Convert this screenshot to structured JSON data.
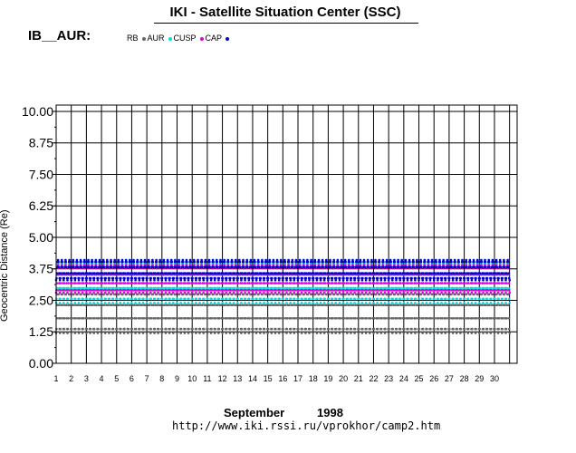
{
  "header": {
    "title": "IKI - Satellite Situation Center (SSC)",
    "station": "IB__AUR:"
  },
  "footer": {
    "month": "September",
    "year": "1998",
    "url": "http://www.iki.rssi.ru/vprokhor/camp2.htm"
  },
  "chart_data": {
    "type": "scatter",
    "title": "IKI - Satellite Situation Center (SSC)",
    "ylabel": "Geocentric Distance (Re)",
    "xlabel": "September 1998",
    "ylim": [
      0,
      10.25
    ],
    "xlim": [
      1,
      31.5
    ],
    "y_ticks": [
      "0.00",
      "1.25",
      "2.50",
      "3.75",
      "5.00",
      "6.25",
      "7.50",
      "8.75",
      "10.00"
    ],
    "y_tick_values": [
      0,
      1.25,
      2.5,
      3.75,
      5.0,
      6.25,
      7.5,
      8.75,
      10.0
    ],
    "x_ticks": [
      "1",
      "2",
      "3",
      "4",
      "5",
      "6",
      "7",
      "8",
      "9",
      "10",
      "11",
      "12",
      "13",
      "14",
      "15",
      "16",
      "17",
      "18",
      "19",
      "20",
      "21",
      "22",
      "23",
      "24",
      "25",
      "26",
      "27",
      "28",
      "29",
      "30"
    ],
    "x_tick_values": [
      1,
      2,
      3,
      4,
      5,
      6,
      7,
      8,
      9,
      10,
      11,
      12,
      13,
      14,
      15,
      16,
      17,
      18,
      19,
      20,
      21,
      22,
      23,
      24,
      25,
      26,
      27,
      28,
      29,
      30
    ],
    "grid": true,
    "legend": [
      {
        "name": "RB",
        "color": "#666666"
      },
      {
        "name": "AUR",
        "color": "#00e0e0"
      },
      {
        "name": "CUSP",
        "color": "#e000e0"
      },
      {
        "name": "CAP",
        "color": "#0000cc"
      }
    ],
    "orbits_per_day": 4,
    "series_ranges": [
      {
        "name": "RB",
        "min": 1.2,
        "max": 2.9,
        "color": "#666666"
      },
      {
        "name": "AUR",
        "min": 2.4,
        "max": 4.1,
        "color": "#00e0e0"
      },
      {
        "name": "CUSP",
        "min": 2.8,
        "max": 3.9,
        "color": "#e000e0"
      },
      {
        "name": "CAP",
        "min": 3.3,
        "max": 4.1,
        "color": "#0000cc"
      }
    ]
  }
}
